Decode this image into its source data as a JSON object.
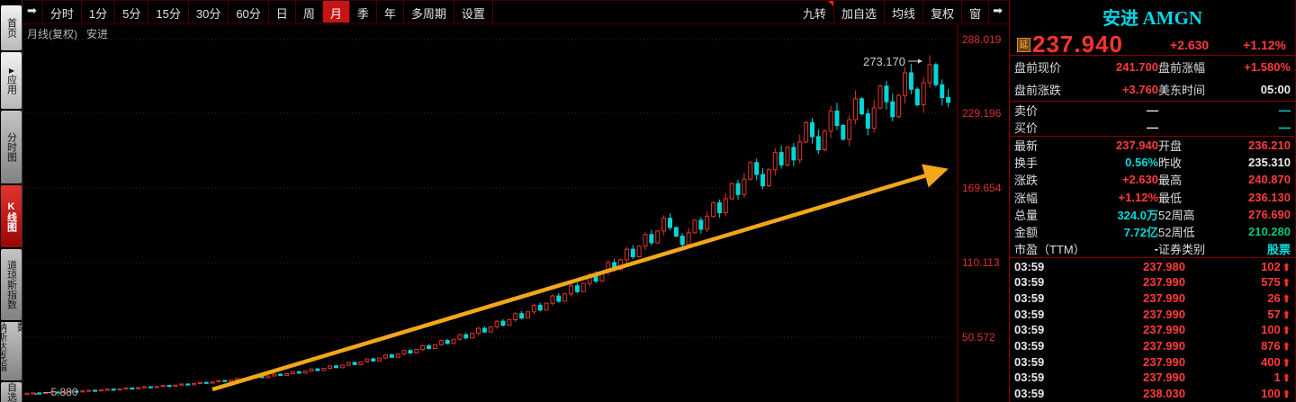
{
  "sidebar": {
    "tabs": [
      {
        "label": "首页",
        "style": "light",
        "active": false
      },
      {
        "label": "应用",
        "style": "light",
        "active": false,
        "icon": "play-icon"
      },
      {
        "label": "分时图",
        "style": "gray",
        "active": false
      },
      {
        "label": "K线图",
        "style": "active",
        "active": true
      },
      {
        "label": "道琼斯指数",
        "style": "gray",
        "active": false
      },
      {
        "label": "纳斯达克指数",
        "style": "gray",
        "active": false
      },
      {
        "label": "自选股",
        "style": "gray",
        "active": false
      }
    ]
  },
  "toolbar": {
    "jump_left_icon": "➡",
    "jump_right_icon": "➡",
    "left_buttons": [
      {
        "label": "分时"
      },
      {
        "label": "1分"
      },
      {
        "label": "5分"
      },
      {
        "label": "15分"
      },
      {
        "label": "30分"
      },
      {
        "label": "60分"
      },
      {
        "label": "日"
      },
      {
        "label": "周"
      },
      {
        "label": "月",
        "active": true
      },
      {
        "label": "季"
      },
      {
        "label": "年"
      },
      {
        "label": "多周期"
      },
      {
        "label": "设置"
      }
    ],
    "right_buttons": [
      {
        "label": "九转",
        "flag": true
      },
      {
        "label": "加自选"
      },
      {
        "label": "均线"
      },
      {
        "label": "复权"
      },
      {
        "label": "窗"
      }
    ],
    "sub_label": "月线(复权)",
    "sub_symbol": "安进"
  },
  "chart_data": {
    "type": "candlestick",
    "period": "monthly",
    "symbol": "安进 AMGN",
    "y_ticks": [
      288.019,
      229.196,
      169.654,
      110.113,
      50.572
    ],
    "low_marker": "5.880",
    "high_marker": "273.170",
    "first_open": 5.88,
    "up_color": "#e0362b",
    "down_color": "#00d6d6",
    "arrow_color": "#f2a71a",
    "grid": "dotted-red",
    "closes": [
      5.9,
      6.2,
      6.0,
      6.5,
      6.9,
      6.6,
      7.1,
      7.6,
      7.2,
      7.8,
      8.3,
      7.9,
      8.6,
      9.2,
      8.7,
      9.4,
      10.1,
      9.6,
      10.4,
      11.1,
      10.5,
      11.3,
      12.1,
      11.5,
      12.4,
      13.3,
      12.6,
      13.6,
      14.6,
      13.9,
      15.0,
      16.1,
      15.2,
      16.4,
      17.6,
      16.7,
      18.0,
      19.3,
      18.3,
      19.7,
      21.1,
      20.0,
      21.5,
      23.1,
      21.9,
      23.6,
      25.3,
      24.0,
      25.8,
      27.7,
      26.3,
      28.3,
      30.4,
      28.8,
      31.0,
      33.3,
      31.6,
      34.0,
      36.5,
      34.6,
      37.2,
      40.0,
      38.0,
      40.8,
      43.8,
      41.6,
      44.7,
      48.0,
      45.6,
      49.0,
      52.6,
      50.0,
      53.7,
      57.7,
      54.8,
      58.9,
      63.3,
      60.1,
      64.6,
      69.4,
      65.9,
      70.8,
      76.1,
      72.3,
      77.7,
      83.5,
      79.3,
      85.2,
      91.6,
      87.0,
      93.5,
      100.4,
      95.4,
      102.5,
      110.1,
      104.6,
      112.4,
      120.8,
      114.8,
      123.3,
      132.5,
      125.9,
      135.3,
      145.4,
      138.1,
      131.2,
      124.6,
      133.9,
      143.9,
      136.7,
      146.9,
      157.8,
      149.9,
      161.1,
      173.1,
      164.4,
      176.7,
      189.9,
      180.4,
      171.4,
      184.2,
      197.9,
      188.0,
      202.0,
      192.0,
      206.3,
      221.7,
      210.6,
      200.1,
      215.0,
      231.1,
      219.5,
      208.5,
      224.1,
      240.8,
      228.8,
      217.3,
      233.5,
      250.9,
      238.4,
      226.5,
      243.4,
      261.5,
      248.4,
      236.0,
      253.6,
      268.0,
      252.0,
      241.7,
      237.94
    ]
  },
  "panel": {
    "title": "安进",
    "symbol": "AMGN",
    "delay_badge": "延",
    "last_price": "237.940",
    "change": "+2.630",
    "change_pct": "+1.12%",
    "sections": [
      {
        "name": "premarket",
        "rows": [
          {
            "l1": "盘前现价",
            "v1": "241.700",
            "c1": "red",
            "l2": "盘前涨幅",
            "v2": "+1.580%",
            "c2": "red"
          },
          {
            "l1": "盘前涨跌",
            "v1": "+3.760",
            "c1": "red",
            "l2": "美东时间",
            "v2": "05:00",
            "c2": "white"
          }
        ]
      },
      {
        "name": "bidask",
        "rows": [
          {
            "l1": "卖价",
            "v1": "—",
            "c1": "white",
            "l2": "",
            "v2": "—",
            "c2": "cyan"
          },
          {
            "l1": "买价",
            "v1": "—",
            "c1": "white",
            "l2": "",
            "v2": "—",
            "c2": "cyan"
          }
        ]
      },
      {
        "name": "stats",
        "rows": [
          {
            "l1": "最新",
            "v1": "237.940",
            "c1": "red",
            "l2": "开盘",
            "v2": "236.210",
            "c2": "red"
          },
          {
            "l1": "换手",
            "v1": "0.56%",
            "c1": "cyan",
            "l2": "昨收",
            "v2": "235.310",
            "c2": "white"
          },
          {
            "l1": "涨跌",
            "v1": "+2.630",
            "c1": "red",
            "l2": "最高",
            "v2": "240.870",
            "c2": "red"
          },
          {
            "l1": "涨幅",
            "v1": "+1.12%",
            "c1": "red",
            "l2": "最低",
            "v2": "236.130",
            "c2": "red"
          },
          {
            "l1": "总量",
            "v1": "324.0万",
            "c1": "cyan",
            "l2": "52周高",
            "v2": "276.690",
            "c2": "red"
          },
          {
            "l1": "金额",
            "v1": "7.72亿",
            "c1": "cyan",
            "l2": "52周低",
            "v2": "210.280",
            "c2": "green"
          },
          {
            "l1": "市盈（TTM）",
            "v1": "-",
            "c1": "white",
            "l2": "证券类别",
            "v2": "股票",
            "c2": "cyan"
          }
        ]
      }
    ],
    "trades": [
      {
        "time": "03:59",
        "price": "237.980",
        "vol": "102"
      },
      {
        "time": "03:59",
        "price": "237.990",
        "vol": "575"
      },
      {
        "time": "03:59",
        "price": "237.990",
        "vol": "26"
      },
      {
        "time": "03:59",
        "price": "237.990",
        "vol": "57"
      },
      {
        "time": "03:59",
        "price": "237.990",
        "vol": "100"
      },
      {
        "time": "03:59",
        "price": "237.990",
        "vol": "876"
      },
      {
        "time": "03:59",
        "price": "237.990",
        "vol": "400"
      },
      {
        "time": "03:59",
        "price": "237.990",
        "vol": "1"
      },
      {
        "time": "03:59",
        "price": "238.030",
        "vol": "100"
      }
    ]
  }
}
